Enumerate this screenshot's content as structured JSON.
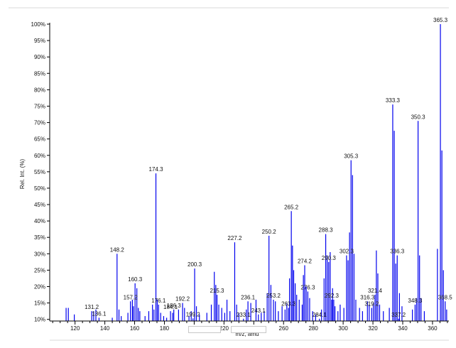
{
  "chart_data": {
    "type": "bar",
    "title": "",
    "xlabel": "m/z, amu",
    "ylabel": "Rel. Int. (%)",
    "xlim": [
      103,
      371
    ],
    "ylim": [
      9.5,
      100
    ],
    "grid": false,
    "colors": {
      "peaks": "#0000ee",
      "axis": "#000000",
      "text": "#111111"
    },
    "x_ticks": [
      120,
      140,
      160,
      180,
      200,
      220,
      240,
      260,
      280,
      300,
      320,
      340,
      360
    ],
    "y_ticks": [
      {
        "value": 10,
        "label": "10%"
      },
      {
        "value": 15,
        "label": "15%"
      },
      {
        "value": 20,
        "label": "20%"
      },
      {
        "value": 25,
        "label": "25%"
      },
      {
        "value": 30,
        "label": "30%"
      },
      {
        "value": 35,
        "label": "35%"
      },
      {
        "value": 40,
        "label": "40%"
      },
      {
        "value": 45,
        "label": "45%"
      },
      {
        "value": 50,
        "label": "50%"
      },
      {
        "value": 55,
        "label": "55%"
      },
      {
        "value": 60,
        "label": "60%"
      },
      {
        "value": 65,
        "label": "65%"
      },
      {
        "value": 70,
        "label": "70%"
      },
      {
        "value": 75,
        "label": "75%"
      },
      {
        "value": 80,
        "label": "80%"
      },
      {
        "value": 85,
        "label": "85%"
      },
      {
        "value": 90,
        "label": "90%"
      },
      {
        "value": 95,
        "label": "95%"
      },
      {
        "value": 100,
        "label": "100%"
      }
    ],
    "labeled_peaks": [
      {
        "mz": 131.2,
        "label": "131.2",
        "intensity": 12.5
      },
      {
        "mz": 136.1,
        "label": "136.1",
        "intensity": 10.5
      },
      {
        "mz": 148.2,
        "label": "148.2",
        "intensity": 30.0
      },
      {
        "mz": 157.2,
        "label": "157.2",
        "intensity": 15.5
      },
      {
        "mz": 160.3,
        "label": "160.3",
        "intensity": 21.0
      },
      {
        "mz": 174.3,
        "label": "174.3",
        "intensity": 54.5
      },
      {
        "mz": 176.1,
        "label": "176.1",
        "intensity": 14.5
      },
      {
        "mz": 186.3,
        "label": "186.3",
        "intensity": 13.0
      },
      {
        "mz": 184.1,
        "label": "184.1",
        "intensity": 12.5
      },
      {
        "mz": 192.2,
        "label": "192.2",
        "intensity": 15.0
      },
      {
        "mz": 199.2,
        "label": "199.2",
        "intensity": 10.3
      },
      {
        "mz": 200.3,
        "label": "200.3",
        "intensity": 25.5
      },
      {
        "mz": 215.3,
        "label": "215.3",
        "intensity": 17.5
      },
      {
        "mz": 227.2,
        "label": "227.2",
        "intensity": 33.5
      },
      {
        "mz": 233.1,
        "label": "233.1",
        "intensity": 10.2
      },
      {
        "mz": 236.1,
        "label": "236.1",
        "intensity": 15.5
      },
      {
        "mz": 243.1,
        "label": "243.1",
        "intensity": 11.5
      },
      {
        "mz": 250.2,
        "label": "250.2",
        "intensity": 35.5
      },
      {
        "mz": 253.2,
        "label": "253.2",
        "intensity": 16.0
      },
      {
        "mz": 263.3,
        "label": "263.3",
        "intensity": 13.5
      },
      {
        "mz": 265.2,
        "label": "265.2",
        "intensity": 43.0
      },
      {
        "mz": 274.2,
        "label": "274.2",
        "intensity": 26.5
      },
      {
        "mz": 276.3,
        "label": "276.3",
        "intensity": 18.5
      },
      {
        "mz": 284.1,
        "label": "284.1",
        "intensity": 10.2
      },
      {
        "mz": 288.3,
        "label": "288.3",
        "intensity": 36.0
      },
      {
        "mz": 290.3,
        "label": "290.3",
        "intensity": 27.5
      },
      {
        "mz": 292.3,
        "label": "292.3",
        "intensity": 16.0
      },
      {
        "mz": 302.3,
        "label": "302.3",
        "intensity": 29.5
      },
      {
        "mz": 305.3,
        "label": "305.3",
        "intensity": 58.5
      },
      {
        "mz": 316.3,
        "label": "316.3",
        "intensity": 15.5
      },
      {
        "mz": 319.2,
        "label": "319.2",
        "intensity": 13.5
      },
      {
        "mz": 321.4,
        "label": "321.4",
        "intensity": 17.5
      },
      {
        "mz": 333.3,
        "label": "333.3",
        "intensity": 75.5
      },
      {
        "mz": 336.3,
        "label": "336.3",
        "intensity": 29.5
      },
      {
        "mz": 337.2,
        "label": "337.2",
        "intensity": 10.2
      },
      {
        "mz": 348.3,
        "label": "348.3",
        "intensity": 14.5
      },
      {
        "mz": 350.3,
        "label": "350.3",
        "intensity": 70.5
      },
      {
        "mz": 365.3,
        "label": "365.3",
        "intensity": 100.0
      },
      {
        "mz": 368.5,
        "label": "368.5",
        "intensity": 15.5
      }
    ],
    "unlabeled_peaks": [
      {
        "mz": 114.0,
        "intensity": 13.5
      },
      {
        "mz": 115.5,
        "intensity": 13.5
      },
      {
        "mz": 119.5,
        "intensity": 11.5
      },
      {
        "mz": 132.5,
        "intensity": 12.5
      },
      {
        "mz": 134.0,
        "intensity": 13.0
      },
      {
        "mz": 145.0,
        "intensity": 10.5
      },
      {
        "mz": 149.5,
        "intensity": 13.0
      },
      {
        "mz": 151.0,
        "intensity": 11.0
      },
      {
        "mz": 155.5,
        "intensity": 12.0
      },
      {
        "mz": 158.5,
        "intensity": 16.0
      },
      {
        "mz": 159.2,
        "intensity": 14.0
      },
      {
        "mz": 161.5,
        "intensity": 19.5
      },
      {
        "mz": 162.5,
        "intensity": 13.5
      },
      {
        "mz": 163.5,
        "intensity": 12.5
      },
      {
        "mz": 167.0,
        "intensity": 11.0
      },
      {
        "mz": 169.5,
        "intensity": 12.5
      },
      {
        "mz": 172.0,
        "intensity": 14.5
      },
      {
        "mz": 173.0,
        "intensity": 13.0
      },
      {
        "mz": 175.2,
        "intensity": 16.0
      },
      {
        "mz": 177.5,
        "intensity": 12.0
      },
      {
        "mz": 179.5,
        "intensity": 11.0
      },
      {
        "mz": 181.5,
        "intensity": 10.5
      },
      {
        "mz": 185.5,
        "intensity": 12.0
      },
      {
        "mz": 189.5,
        "intensity": 13.0
      },
      {
        "mz": 193.5,
        "intensity": 13.5
      },
      {
        "mz": 196.5,
        "intensity": 11.0
      },
      {
        "mz": 198.0,
        "intensity": 12.5
      },
      {
        "mz": 201.5,
        "intensity": 14.0
      },
      {
        "mz": 203.5,
        "intensity": 11.5
      },
      {
        "mz": 208.5,
        "intensity": 12.0
      },
      {
        "mz": 211.5,
        "intensity": 14.5
      },
      {
        "mz": 213.5,
        "intensity": 24.5
      },
      {
        "mz": 214.5,
        "intensity": 20.5
      },
      {
        "mz": 216.5,
        "intensity": 14.5
      },
      {
        "mz": 218.5,
        "intensity": 13.5
      },
      {
        "mz": 220.5,
        "intensity": 12.0
      },
      {
        "mz": 222.0,
        "intensity": 16.0
      },
      {
        "mz": 224.0,
        "intensity": 12.5
      },
      {
        "mz": 228.5,
        "intensity": 14.5
      },
      {
        "mz": 230.0,
        "intensity": 12.0
      },
      {
        "mz": 235.0,
        "intensity": 13.0
      },
      {
        "mz": 238.0,
        "intensity": 15.0
      },
      {
        "mz": 241.5,
        "intensity": 16.0
      },
      {
        "mz": 245.0,
        "intensity": 12.0
      },
      {
        "mz": 247.0,
        "intensity": 12.5
      },
      {
        "mz": 249.0,
        "intensity": 18.0
      },
      {
        "mz": 251.5,
        "intensity": 20.5
      },
      {
        "mz": 254.5,
        "intensity": 15.5
      },
      {
        "mz": 256.5,
        "intensity": 12.5
      },
      {
        "mz": 259.0,
        "intensity": 14.0
      },
      {
        "mz": 261.0,
        "intensity": 13.0
      },
      {
        "mz": 262.2,
        "intensity": 15.0
      },
      {
        "mz": 264.0,
        "intensity": 22.5
      },
      {
        "mz": 266.0,
        "intensity": 32.5
      },
      {
        "mz": 266.8,
        "intensity": 25.0
      },
      {
        "mz": 267.8,
        "intensity": 21.0
      },
      {
        "mz": 268.8,
        "intensity": 17.5
      },
      {
        "mz": 270.5,
        "intensity": 16.0
      },
      {
        "mz": 272.5,
        "intensity": 14.5
      },
      {
        "mz": 273.3,
        "intensity": 23.5
      },
      {
        "mz": 275.2,
        "intensity": 20.0
      },
      {
        "mz": 277.5,
        "intensity": 16.5
      },
      {
        "mz": 279.5,
        "intensity": 12.5
      },
      {
        "mz": 281.5,
        "intensity": 11.5
      },
      {
        "mz": 285.5,
        "intensity": 13.0
      },
      {
        "mz": 287.2,
        "intensity": 22.5
      },
      {
        "mz": 289.3,
        "intensity": 29.5
      },
      {
        "mz": 291.3,
        "intensity": 30.5
      },
      {
        "mz": 292.9,
        "intensity": 19.5
      },
      {
        "mz": 293.7,
        "intensity": 16.0
      },
      {
        "mz": 294.5,
        "intensity": 14.0
      },
      {
        "mz": 296.5,
        "intensity": 12.5
      },
      {
        "mz": 298.0,
        "intensity": 14.5
      },
      {
        "mz": 300.5,
        "intensity": 13.5
      },
      {
        "mz": 303.3,
        "intensity": 28.0
      },
      {
        "mz": 304.3,
        "intensity": 36.5
      },
      {
        "mz": 306.3,
        "intensity": 54.0
      },
      {
        "mz": 307.3,
        "intensity": 30.0
      },
      {
        "mz": 308.5,
        "intensity": 16.0
      },
      {
        "mz": 311.0,
        "intensity": 13.5
      },
      {
        "mz": 313.0,
        "intensity": 12.5
      },
      {
        "mz": 317.5,
        "intensity": 14.5
      },
      {
        "mz": 320.3,
        "intensity": 15.0
      },
      {
        "mz": 322.3,
        "intensity": 31.0
      },
      {
        "mz": 323.3,
        "intensity": 24.0
      },
      {
        "mz": 324.5,
        "intensity": 14.5
      },
      {
        "mz": 327.0,
        "intensity": 12.5
      },
      {
        "mz": 331.0,
        "intensity": 13.5
      },
      {
        "mz": 334.3,
        "intensity": 67.5
      },
      {
        "mz": 335.3,
        "intensity": 27.0
      },
      {
        "mz": 337.8,
        "intensity": 18.0
      },
      {
        "mz": 339.5,
        "intensity": 14.0
      },
      {
        "mz": 346.5,
        "intensity": 13.0
      },
      {
        "mz": 349.3,
        "intensity": 16.5
      },
      {
        "mz": 351.3,
        "intensity": 29.5
      },
      {
        "mz": 352.3,
        "intensity": 16.5
      },
      {
        "mz": 354.5,
        "intensity": 12.5
      },
      {
        "mz": 363.3,
        "intensity": 31.5
      },
      {
        "mz": 366.3,
        "intensity": 61.5
      },
      {
        "mz": 367.3,
        "intensity": 25.0
      },
      {
        "mz": 369.5,
        "intensity": 13.0
      }
    ]
  }
}
